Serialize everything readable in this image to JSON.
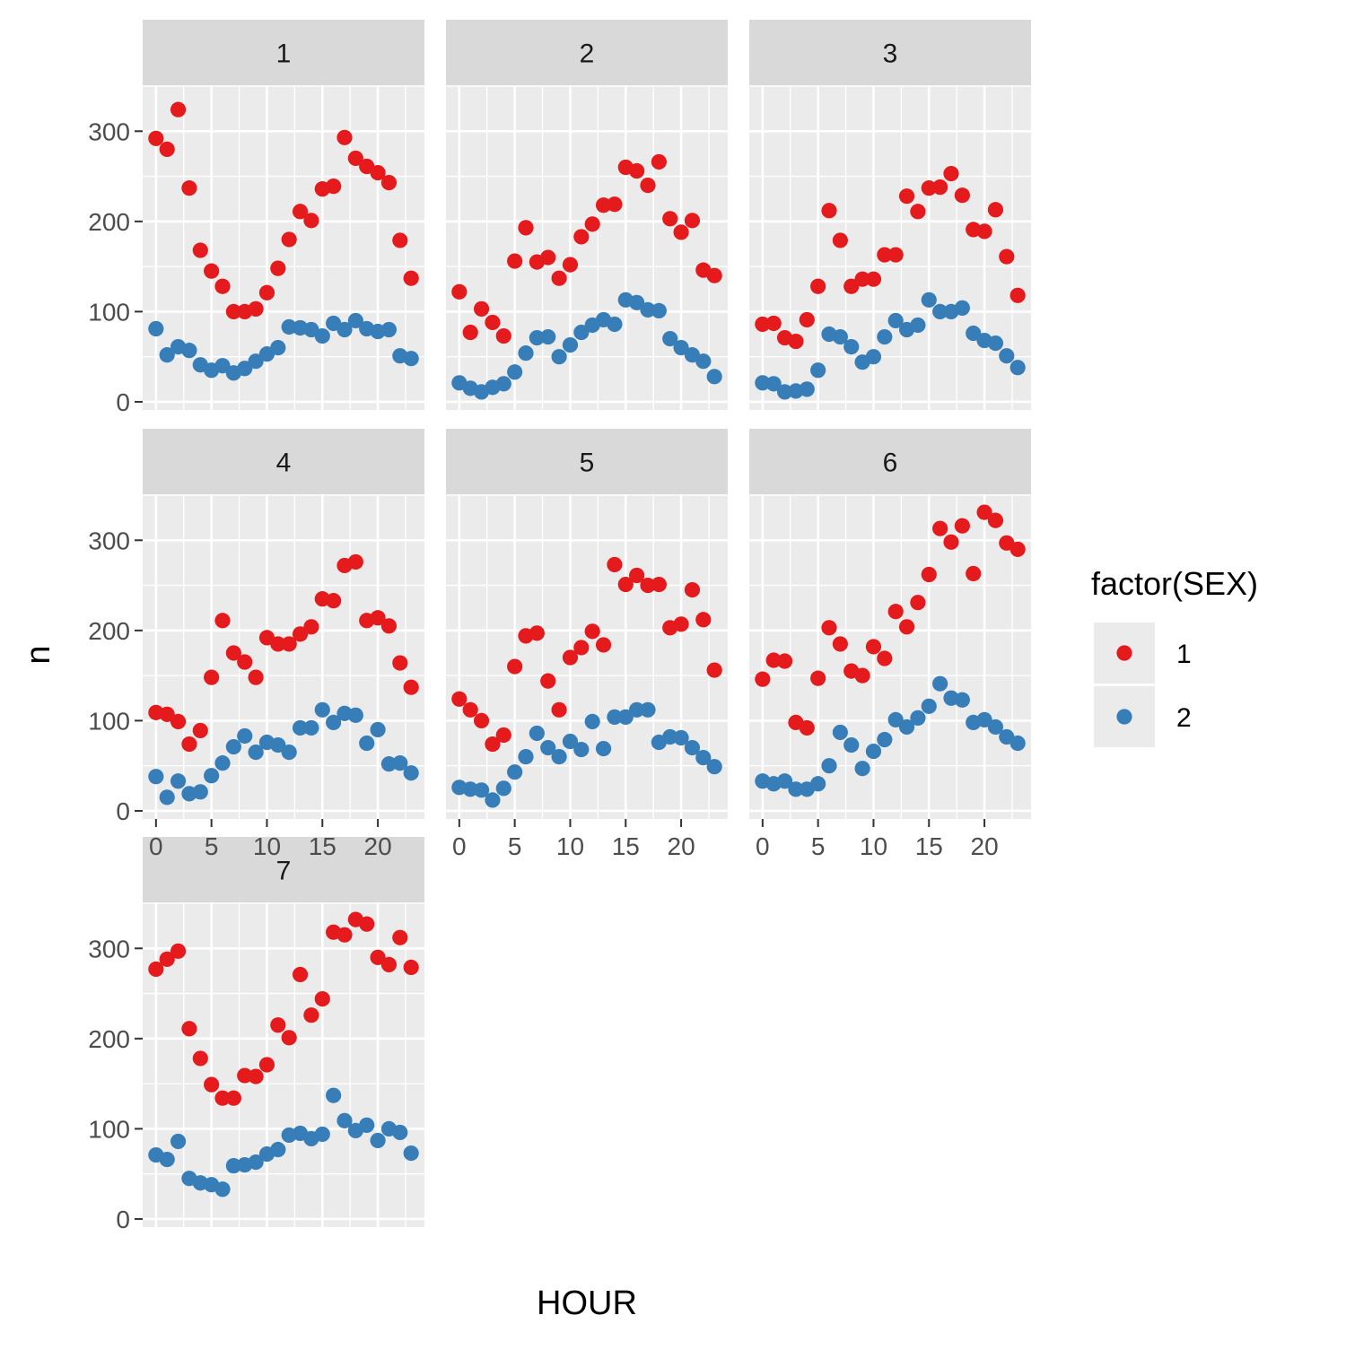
{
  "chart_data": {
    "type": "scatter",
    "facet_by": "day",
    "xlabel": "HOUR",
    "ylabel": "n",
    "xlim": [
      -1.2,
      24.2
    ],
    "ylim": [
      -9,
      351
    ],
    "x_ticks": [
      0,
      5,
      10,
      15,
      20
    ],
    "x_tick_labels": [
      "0",
      "5",
      "10",
      "15",
      "20"
    ],
    "y_ticks": [
      0,
      100,
      200,
      300
    ],
    "y_tick_labels": [
      "0",
      "100",
      "200",
      "300"
    ],
    "grid": true,
    "legend": {
      "title": "factor(SEX)",
      "position": "right",
      "entries": [
        {
          "label": "1",
          "color": "#E41A1C"
        },
        {
          "label": "2",
          "color": "#377EB8"
        }
      ]
    },
    "hours": [
      0,
      1,
      2,
      3,
      4,
      5,
      6,
      7,
      8,
      9,
      10,
      11,
      12,
      13,
      14,
      15,
      16,
      17,
      18,
      19,
      20,
      21,
      22,
      23
    ],
    "panels": [
      {
        "label": "1",
        "series": [
          {
            "name": "1",
            "color": "#E41A1C",
            "values": [
              292,
              280,
              324,
              237,
              168,
              145,
              128,
              100,
              100,
              103,
              121,
              148,
              180,
              211,
              201,
              236,
              239,
              293,
              270,
              261,
              254,
              243,
              179,
              137
            ]
          },
          {
            "name": "2",
            "color": "#377EB8",
            "values": [
              81,
              52,
              61,
              57,
              41,
              35,
              40,
              32,
              37,
              45,
              53,
              60,
              83,
              82,
              80,
              73,
              87,
              80,
              90,
              81,
              78,
              80,
              51,
              48
            ]
          }
        ]
      },
      {
        "label": "2",
        "series": [
          {
            "name": "1",
            "color": "#E41A1C",
            "values": [
              122,
              77,
              103,
              88,
              73,
              156,
              193,
              155,
              160,
              137,
              152,
              183,
              197,
              218,
              219,
              260,
              256,
              240,
              266,
              203,
              188,
              201,
              146,
              140
            ]
          },
          {
            "name": "2",
            "color": "#377EB8",
            "values": [
              21,
              15,
              11,
              16,
              20,
              33,
              54,
              71,
              72,
              50,
              63,
              77,
              85,
              91,
              86,
              113,
              110,
              102,
              101,
              70,
              60,
              52,
              45,
              28
            ]
          }
        ]
      },
      {
        "label": "3",
        "series": [
          {
            "name": "1",
            "color": "#E41A1C",
            "values": [
              86,
              87,
              71,
              67,
              91,
              128,
              212,
              179,
              128,
              136,
              136,
              163,
              163,
              228,
              211,
              237,
              238,
              253,
              229,
              191,
              189,
              213,
              161,
              118
            ]
          },
          {
            "name": "2",
            "color": "#377EB8",
            "values": [
              21,
              20,
              11,
              12,
              14,
              35,
              75,
              72,
              61,
              44,
              50,
              72,
              90,
              80,
              85,
              113,
              100,
              100,
              104,
              76,
              68,
              65,
              51,
              38
            ]
          }
        ]
      },
      {
        "label": "4",
        "series": [
          {
            "name": "1",
            "color": "#E41A1C",
            "values": [
              109,
              107,
              99,
              74,
              89,
              148,
              211,
              175,
              165,
              148,
              192,
              185,
              185,
              196,
              204,
              235,
              233,
              272,
              276,
              211,
              214,
              205,
              164,
              137
            ]
          },
          {
            "name": "2",
            "color": "#377EB8",
            "values": [
              38,
              15,
              33,
              19,
              21,
              39,
              53,
              71,
              83,
              65,
              76,
              73,
              65,
              92,
              92,
              112,
              98,
              108,
              106,
              75,
              90,
              52,
              53,
              42
            ]
          }
        ]
      },
      {
        "label": "5",
        "series": [
          {
            "name": "1",
            "color": "#E41A1C",
            "values": [
              124,
              112,
              100,
              74,
              84,
              160,
              194,
              197,
              144,
              112,
              170,
              181,
              199,
              184,
              273,
              251,
              261,
              250,
              251,
              203,
              207,
              245,
              212,
              156
            ]
          },
          {
            "name": "2",
            "color": "#377EB8",
            "values": [
              26,
              24,
              23,
              12,
              25,
              43,
              60,
              86,
              70,
              60,
              77,
              68,
              99,
              69,
              104,
              104,
              112,
              112,
              76,
              82,
              81,
              70,
              59,
              49
            ]
          }
        ]
      },
      {
        "label": "6",
        "series": [
          {
            "name": "1",
            "color": "#E41A1C",
            "values": [
              146,
              167,
              166,
              98,
              92,
              147,
              203,
              185,
              155,
              150,
              182,
              169,
              221,
              204,
              231,
              262,
              313,
              298,
              316,
              263,
              331,
              322,
              297,
              290
            ]
          },
          {
            "name": "2",
            "color": "#377EB8",
            "values": [
              33,
              30,
              33,
              24,
              24,
              30,
              50,
              87,
              73,
              47,
              66,
              79,
              101,
              93,
              103,
              116,
              141,
              125,
              123,
              98,
              101,
              93,
              82,
              75
            ]
          }
        ]
      },
      {
        "label": "7",
        "series": [
          {
            "name": "1",
            "color": "#E41A1C",
            "values": [
              277,
              288,
              297,
              211,
              178,
              149,
              134,
              134,
              159,
              158,
              171,
              215,
              201,
              271,
              226,
              244,
              318,
              315,
              332,
              327,
              290,
              282,
              312,
              279
            ]
          },
          {
            "name": "2",
            "color": "#377EB8",
            "values": [
              71,
              66,
              86,
              45,
              40,
              38,
              33,
              59,
              60,
              63,
              72,
              77,
              93,
              95,
              89,
              94,
              137,
              109,
              98,
              104,
              87,
              100,
              96,
              73
            ]
          }
        ]
      }
    ]
  }
}
